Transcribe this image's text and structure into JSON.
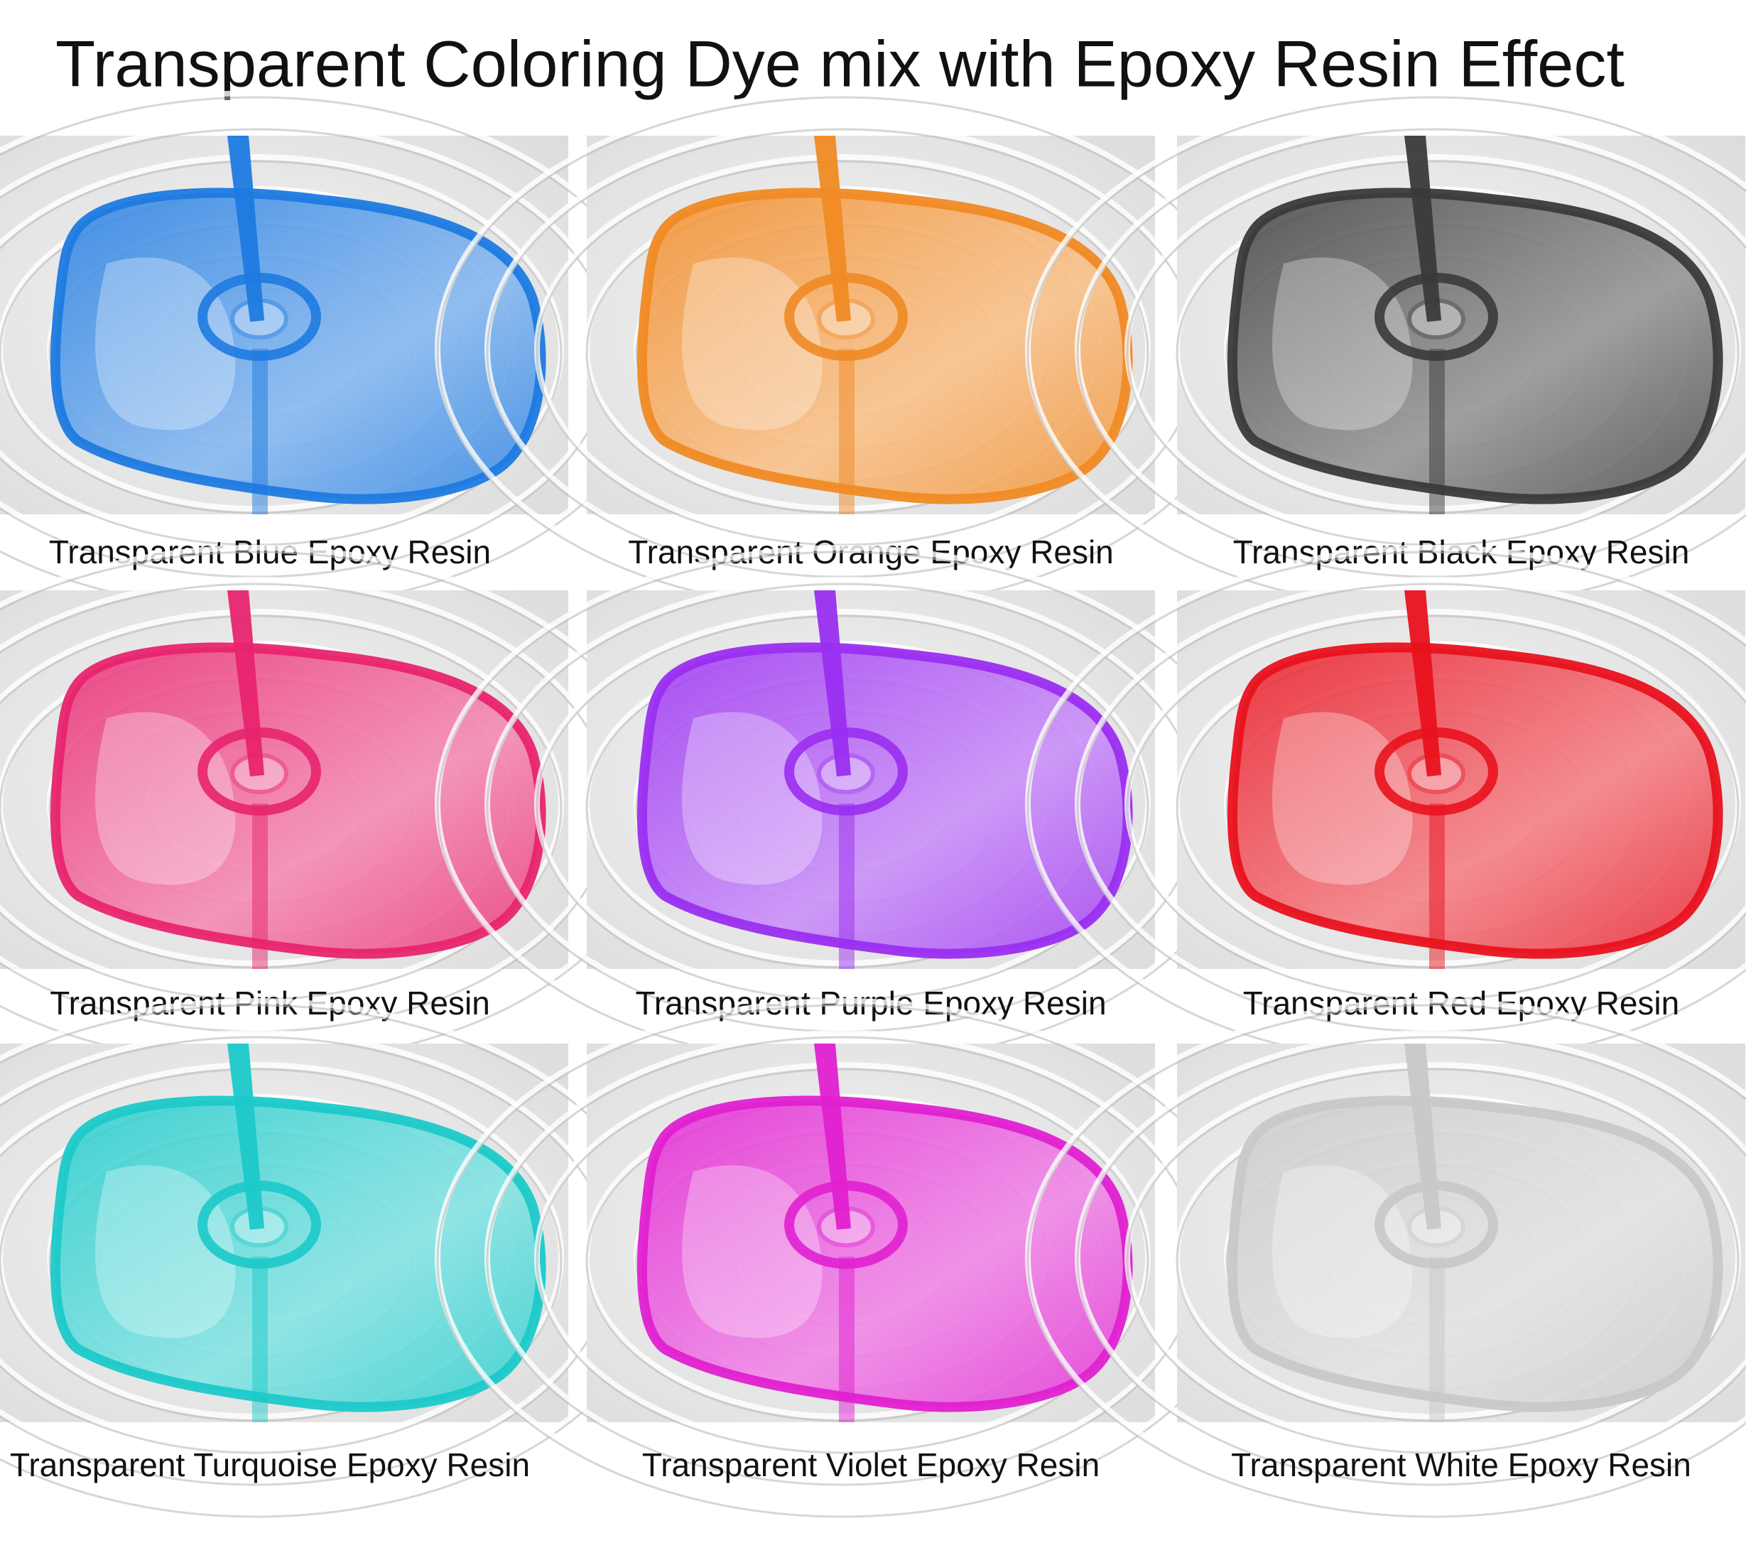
{
  "title": "Transparent Coloring Dye mix with Epoxy Resin Effect",
  "tiles": [
    {
      "label": "Transparent Blue Epoxy Resin"
    },
    {
      "label": "Transparent Orange Epoxy Resin"
    },
    {
      "label": "Transparent Black Epoxy Resin"
    },
    {
      "label": "Transparent Pink Epoxy Resin"
    },
    {
      "label": "Transparent Purple Epoxy Resin"
    },
    {
      "label": "Transparent Red Epoxy Resin"
    },
    {
      "label": "Transparent Turquoise Epoxy Resin"
    },
    {
      "label": "Transparent Violet Epoxy Resin"
    },
    {
      "label": "Transparent White Epoxy Resin"
    }
  ]
}
